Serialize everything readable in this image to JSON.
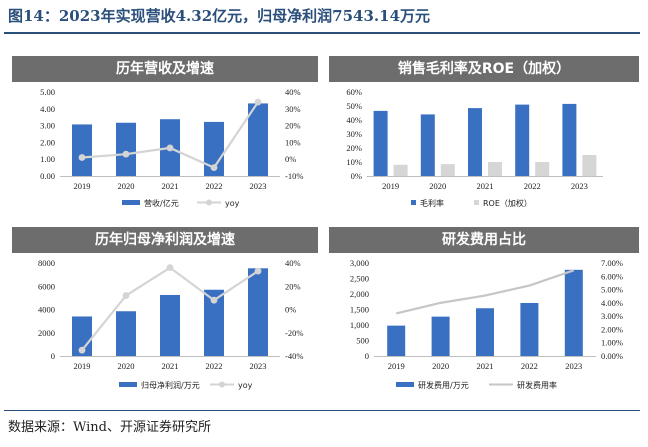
{
  "figure_title": "图14：2023年实现营收4.32亿元，归母净利润7543.14万元",
  "source_note": "数据来源：Wind、开源证券研究所",
  "colors": {
    "bar": "#3a70c2",
    "line_light": "#d4d4d4",
    "line_mid": "#c6c6c6",
    "roe_bar": "#d6d6d6",
    "header": "#6d6d6d",
    "title": "#2a4f7a"
  },
  "chart_data": [
    {
      "type": "bar",
      "title": "历年营收及增速",
      "categories": [
        "2019",
        "2020",
        "2021",
        "2022",
        "2023"
      ],
      "series": [
        {
          "name": "营收/亿元",
          "kind": "bar",
          "axis": "left",
          "values": [
            3.07,
            3.17,
            3.38,
            3.22,
            4.32
          ]
        },
        {
          "name": "yoy",
          "kind": "line",
          "axis": "right",
          "values": [
            0.01,
            0.03,
            0.067,
            -0.05,
            0.34
          ]
        }
      ],
      "left_axis": {
        "ylim": [
          0,
          5
        ],
        "ticks": [
          "0.00",
          "1.00",
          "2.00",
          "3.00",
          "4.00",
          "5.00"
        ]
      },
      "right_axis": {
        "ylim": [
          -0.1,
          0.4
        ],
        "ticks": [
          "-10%",
          "0%",
          "10%",
          "20%",
          "30%",
          "40%"
        ]
      },
      "legend_position": "bottom"
    },
    {
      "type": "bar",
      "title": "销售毛利率及ROE（加权）",
      "categories": [
        "2019",
        "2020",
        "2021",
        "2022",
        "2023"
      ],
      "series": [
        {
          "name": "毛利率",
          "kind": "bar",
          "axis": "left",
          "values": [
            0.465,
            0.44,
            0.485,
            0.51,
            0.515
          ]
        },
        {
          "name": "ROE（加权）",
          "kind": "bar",
          "axis": "left",
          "values": [
            0.08,
            0.085,
            0.1,
            0.1,
            0.15
          ]
        }
      ],
      "left_axis": {
        "ylim": [
          0,
          0.6
        ],
        "ticks": [
          "0%",
          "10%",
          "20%",
          "30%",
          "40%",
          "50%",
          "60%"
        ]
      },
      "legend_position": "bottom"
    },
    {
      "type": "bar",
      "title": "历年归母净利润及增速",
      "categories": [
        "2019",
        "2020",
        "2021",
        "2022",
        "2023"
      ],
      "series": [
        {
          "name": "归母净利润/万元",
          "kind": "bar",
          "axis": "left",
          "values": [
            3400,
            3850,
            5250,
            5700,
            7543.14
          ]
        },
        {
          "name": "yoy",
          "kind": "line",
          "axis": "right",
          "values": [
            -0.35,
            0.12,
            0.36,
            0.08,
            0.33
          ]
        }
      ],
      "left_axis": {
        "ylim": [
          0,
          8000
        ],
        "ticks": [
          "0",
          "2000",
          "4000",
          "6000",
          "8000"
        ]
      },
      "right_axis": {
        "ylim": [
          -0.4,
          0.4
        ],
        "ticks": [
          "-40%",
          "-20%",
          "0%",
          "20%",
          "40%"
        ]
      },
      "legend_position": "bottom"
    },
    {
      "type": "bar",
      "title": "研发费用占比",
      "categories": [
        "2019",
        "2020",
        "2021",
        "2022",
        "2023"
      ],
      "series": [
        {
          "name": "研发费用/万元",
          "kind": "bar",
          "axis": "left",
          "values": [
            980,
            1270,
            1540,
            1710,
            2780
          ]
        },
        {
          "name": "研发费用率",
          "kind": "line",
          "axis": "right",
          "values": [
            0.032,
            0.04,
            0.0455,
            0.053,
            0.0645
          ]
        }
      ],
      "left_axis": {
        "ylim": [
          0,
          3000
        ],
        "ticks": [
          "0",
          "500",
          "1,000",
          "1,500",
          "2,000",
          "2,500",
          "3,000"
        ]
      },
      "right_axis": {
        "ylim": [
          0,
          0.07
        ],
        "ticks": [
          "0.00%",
          "1.00%",
          "2.00%",
          "3.00%",
          "4.00%",
          "5.00%",
          "6.00%",
          "7.00%"
        ]
      },
      "legend_position": "bottom"
    }
  ]
}
